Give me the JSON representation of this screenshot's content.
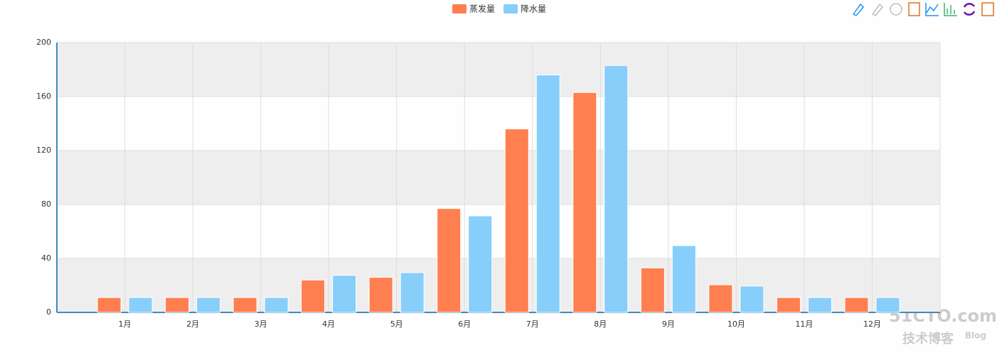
{
  "chart_data": {
    "type": "bar",
    "categories": [
      "1月",
      "2月",
      "3月",
      "4月",
      "5月",
      "6月",
      "7月",
      "8月",
      "9月",
      "10月",
      "11月",
      "12月"
    ],
    "series": [
      {
        "name": "蒸发量",
        "color": "#ff7f50",
        "values": [
          11,
          11,
          11,
          24,
          26,
          77,
          136,
          163,
          33,
          20.5,
          11,
          11
        ]
      },
      {
        "name": "降水量",
        "color": "#87cefa",
        "values": [
          11,
          11,
          11,
          27.5,
          29.5,
          71.5,
          176,
          183,
          49.5,
          19.5,
          11,
          11
        ]
      }
    ],
    "ylim": [
      0,
      200
    ],
    "yticks": [
      0,
      40,
      80,
      120,
      160,
      200
    ],
    "grid": true,
    "legend": "top"
  },
  "watermark": {
    "site": "51CTO.com",
    "text": "技术博客",
    "tag": "Blog"
  }
}
